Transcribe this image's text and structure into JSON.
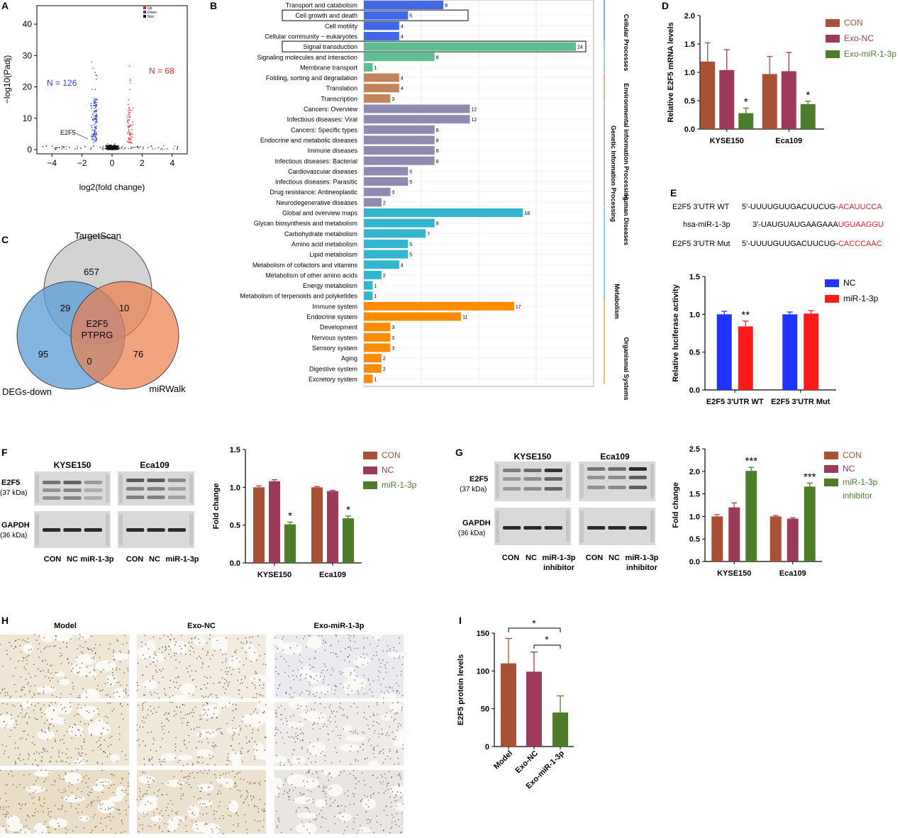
{
  "colors": {
    "up": "#e8222a",
    "down": "#2b3fd6",
    "non": "#111111",
    "con": "#a85137",
    "nc_exo": "#9c3a5a",
    "mir": "#4d7c2a",
    "blue_bar": "#1e33ff",
    "red_bar": "#ff1a1a",
    "cat_cellular": "#4166e6",
    "cat_env": "#5cbf91",
    "cat_genetic": "#c2855b",
    "cat_human": "#8f8bb0",
    "cat_metab": "#33b5d0",
    "cat_org": "#ff8c00",
    "venn_target": "#c4c4c4",
    "venn_degs": "#5b9bd5",
    "venn_mirwalk": "#ed7d4c"
  },
  "panels": {
    "A": {
      "letter": "A",
      "chart_data": {
        "type": "scatter",
        "title": "",
        "xlabel": "log2(fold change)",
        "ylabel": "−log10(Padj)",
        "xlim": [
          -5,
          5
        ],
        "ylim": [
          0,
          45
        ],
        "xticks": [
          -4,
          -2,
          0,
          2,
          4
        ],
        "yticks": [
          0,
          10,
          20,
          30,
          40
        ],
        "legend": [
          "Up",
          "Down",
          "Non"
        ],
        "annotations": {
          "down_count": "N = 126",
          "up_count": "N = 68",
          "gene": "E2F5"
        },
        "highlight_points": [
          {
            "name": "E2F5",
            "x": -1.2,
            "y": 5
          }
        ]
      }
    },
    "B": {
      "letter": "B",
      "chart_data": {
        "type": "bar",
        "orientation": "horizontal",
        "categories": [
          "Transport and catabolism",
          "Cell growth and death",
          "Cell motility",
          "Cellular community − eukaryotes",
          "Signal transduction",
          "Signaling molecules and interaction",
          "Membrane transport",
          "Folding, sorting and degradation",
          "Translation",
          "Transcription",
          "Cancers: Overview",
          "Infectious diseases: Viral",
          "Cancers: Specific types",
          "Endocrine and metabolic diseases",
          "Immune diseases",
          "Infectious diseases: Bacterial",
          "Cardiovascular diseases",
          "Infectious diseases: Parasitic",
          "Drug resistance: Antineoplastic",
          "Neurodegenerative diseases",
          "Global and overview maps",
          "Glycan biosynthesis and metabolism",
          "Carbohydrate metabolism",
          "Amino acid metabolism",
          "Lipid metabolism",
          "Metabolism of cofactors and vitamins",
          "Metabolism of other amino acids",
          "Energy metabolism",
          "Metabolism of terpenoids and polyketides",
          "Immune system",
          "Endocrine system",
          "Development",
          "Nervous system",
          "Sensory system",
          "Aging",
          "Digestive system",
          "Excretory system"
        ],
        "values": [
          9,
          5,
          4,
          4,
          24,
          8,
          1,
          4,
          4,
          3,
          12,
          12,
          8,
          8,
          8,
          8,
          5,
          5,
          3,
          2,
          18,
          8,
          7,
          5,
          5,
          4,
          2,
          1,
          1,
          17,
          11,
          3,
          3,
          3,
          2,
          2,
          1
        ],
        "group_index": [
          0,
          0,
          0,
          0,
          1,
          1,
          1,
          2,
          2,
          2,
          3,
          3,
          3,
          3,
          3,
          3,
          3,
          3,
          3,
          3,
          4,
          4,
          4,
          4,
          4,
          4,
          4,
          4,
          4,
          5,
          5,
          5,
          5,
          5,
          5,
          5,
          5
        ],
        "groups": [
          "Cellular Processes",
          "Environmental Information Processing",
          "Genetic Information Processing",
          "Human Diseases",
          "Metabolism",
          "Organismal Systems"
        ],
        "boxed_categories": [
          "Cell growth and death",
          "Signal transduction"
        ],
        "xlim": [
          0,
          26
        ]
      }
    },
    "C": {
      "letter": "C",
      "chart_data": {
        "type": "venn",
        "sets": [
          "TargetScan",
          "DEGs-down",
          "miRWalk"
        ],
        "regions": {
          "target_only": "657",
          "target_degs": "29",
          "target_mirwalk": "10",
          "center_line1": "E2F5",
          "center_line2": "PTPRG",
          "degs_only": "95",
          "degs_mirwalk": "0",
          "mirwalk_only": "76"
        }
      }
    },
    "D": {
      "letter": "D",
      "chart_data": {
        "type": "bar",
        "categories": [
          "KYSE150",
          "Eca109"
        ],
        "series": [
          {
            "name": "CON",
            "values": [
              1.19,
              0.97
            ],
            "errors": [
              0.33,
              0.31
            ]
          },
          {
            "name": "Exo-NC",
            "values": [
              1.04,
              1.02
            ],
            "errors": [
              0.36,
              0.33
            ]
          },
          {
            "name": "Exo-miR-1-3p",
            "values": [
              0.28,
              0.44
            ],
            "errors": [
              0.09,
              0.05
            ]
          }
        ],
        "significance": [
          "*",
          "*"
        ],
        "ylabel": "Relative E2F5 mRNA levels",
        "ylim": [
          0,
          2.0
        ],
        "yticks": [
          "0.0",
          "0.5",
          "1.0",
          "1.5",
          "2.0"
        ]
      }
    },
    "E": {
      "letter": "E",
      "sequences": [
        {
          "label": "E2F5 3'UTR WT",
          "black": "5'-UUUUGUUGACUUCUG-",
          "red": "ACAUUCCA"
        },
        {
          "label": "hsa-miR-1-3p",
          "black": "3'-UAUGUAUGAAGAAA",
          "red": "UGUAAGGU"
        },
        {
          "label": "E2F5 3'UTR Mut",
          "black": "5'-UUUUGUUGACUUCUG-",
          "red": "CACCCAAC"
        }
      ],
      "chart_data": {
        "type": "bar",
        "categories": [
          "E2F5 3'UTR WT",
          "E2F5 3'UTR Mut"
        ],
        "series": [
          {
            "name": "NC",
            "values": [
              1.0,
              1.0
            ],
            "errors": [
              0.04,
              0.03
            ]
          },
          {
            "name": "miR-1-3p",
            "values": [
              0.84,
              1.01
            ],
            "errors": [
              0.07,
              0.04
            ]
          }
        ],
        "significance": [
          "**",
          ""
        ],
        "ylabel": "Relative luciferase activity",
        "ylim": [
          0,
          1.5
        ],
        "yticks": [
          "0.0",
          "0.5",
          "1.0",
          "1.5"
        ]
      }
    },
    "F": {
      "letter": "F",
      "blot": {
        "cell_lines": [
          "KYSE150",
          "Eca109"
        ],
        "target": "E2F5",
        "target_kda": "(37 kDa)",
        "control": "GAPDH",
        "control_kda": "(36 kDa)",
        "lanes": [
          "CON",
          "NC",
          "miR-1-3p"
        ]
      },
      "chart_data": {
        "type": "bar",
        "categories": [
          "KYSE150",
          "Eca109"
        ],
        "series": [
          {
            "name": "CON",
            "values": [
              1.0,
              1.0
            ],
            "errors": [
              0.02,
              0.01
            ]
          },
          {
            "name": "NC",
            "values": [
              1.08,
              0.95
            ],
            "errors": [
              0.02,
              0.01
            ]
          },
          {
            "name": "miR-1-3p",
            "values": [
              0.51,
              0.59
            ],
            "errors": [
              0.03,
              0.03
            ]
          }
        ],
        "significance": [
          "*",
          "*"
        ],
        "ylabel": "Fold change",
        "ylim": [
          0,
          1.5
        ],
        "yticks": [
          "0.0",
          "0.5",
          "1.0",
          "1.5"
        ]
      }
    },
    "G": {
      "letter": "G",
      "blot": {
        "cell_lines": [
          "KYSE150",
          "Eca109"
        ],
        "target": "E2F5",
        "target_kda": "(37 kDa)",
        "control": "GAPDH",
        "control_kda": "(36 kDa)",
        "lanes": [
          "CON",
          "NC",
          "miR-1-3p"
        ],
        "lane3_line2": "inhibitor"
      },
      "chart_data": {
        "type": "bar",
        "categories": [
          "KYSE150",
          "Eca109"
        ],
        "series": [
          {
            "name": "CON",
            "values": [
              1.0,
              1.0
            ],
            "errors": [
              0.04,
              0.02
            ]
          },
          {
            "name": "NC",
            "values": [
              1.2,
              0.95
            ],
            "errors": [
              0.1,
              0.02
            ]
          },
          {
            "name": "miR-1-3p inhibitor",
            "values": [
              2.01,
              1.66
            ],
            "errors": [
              0.08,
              0.08
            ]
          }
        ],
        "legend_labels": [
          "CON",
          "NC",
          "miR-1-3p",
          "inhibitor"
        ],
        "significance": [
          "***",
          "***"
        ],
        "ylabel": "Fold change",
        "ylim": [
          0,
          2.5
        ],
        "yticks": [
          "0.0",
          "0.5",
          "1.0",
          "1.5",
          "2.0",
          "2.5"
        ]
      }
    },
    "H": {
      "letter": "H",
      "columns": [
        "Model",
        "Exo-NC",
        "Exo-miR-1-3p"
      ]
    },
    "I": {
      "letter": "I",
      "chart_data": {
        "type": "bar",
        "categories": [
          "Model",
          "Exo-NC",
          "Exo-miR-1-3p"
        ],
        "values": [
          110,
          99,
          45
        ],
        "errors": [
          33,
          26,
          22
        ],
        "significance": [
          "*",
          "*"
        ],
        "ylabel": "E2F5 protein levels",
        "ylim": [
          0,
          150
        ],
        "yticks": [
          "0",
          "50",
          "100",
          "150"
        ]
      }
    }
  }
}
